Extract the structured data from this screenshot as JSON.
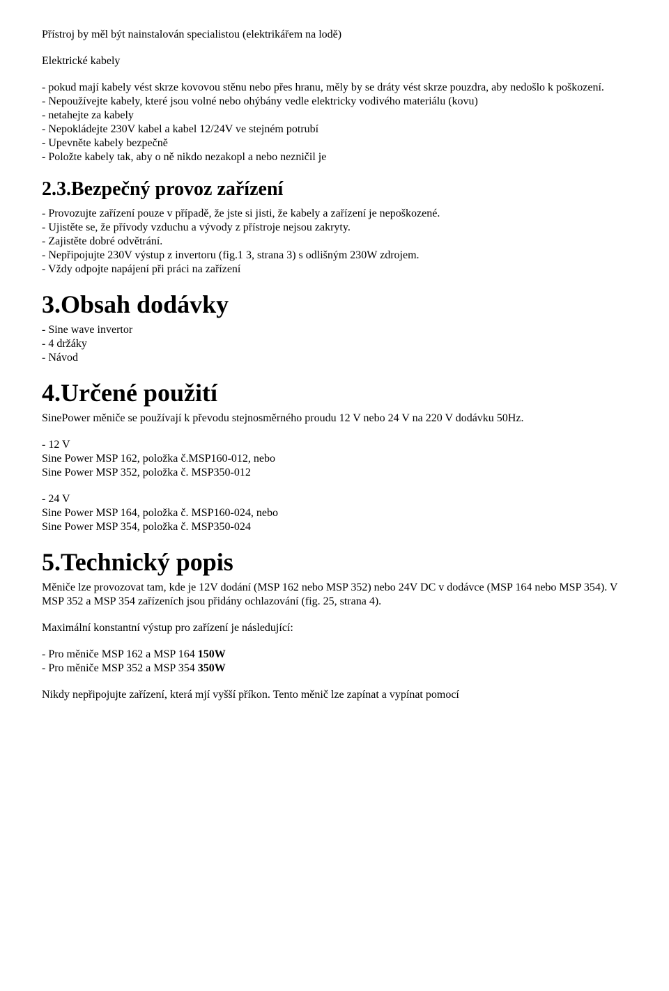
{
  "intro": {
    "line1": "Přístroj by měl být nainstalován specialistou (elektrikářem na lodě)",
    "heading": "Elektrické kabely",
    "bullets": [
      "pokud mají kabely vést skrze kovovou stěnu nebo přes hranu, měly by se dráty vést skrze pouzdra, aby nedošlo k poškození.",
      "Nepoužívejte kabely, které jsou volné nebo ohýbány vedle elektricky vodivého materiálu (kovu)",
      "netahejte za kabely",
      "Nepokládejte 230V kabel a kabel 12/24V ve stejném potrubí",
      "Upevněte kabely bezpečně",
      "Položte kabely tak, aby o ně nikdo nezakopl a nebo nezničil je"
    ]
  },
  "s23": {
    "title": "2.3.Bezpečný provoz zařízení",
    "bullets": [
      "Provozujte zařízení pouze v případě, že jste si jisti, že kabely a zařízení je nepoškozené.",
      "Ujistěte se, že přívody vzduchu a vývody z přístroje nejsou zakryty.",
      "Zajistěte dobré odvětrání.",
      "Nepřipojujte 230V výstup z invertoru (fig.1 3, strana 3) s odlišným 230W zdrojem.",
      "Vždy odpojte napájení při práci na zařízení"
    ]
  },
  "s3": {
    "title": "3.Obsah dodávky",
    "bullets": [
      "Sine wave invertor",
      "4 držáky",
      "Návod"
    ]
  },
  "s4": {
    "title": "4.Určené použití",
    "desc": "SinePower měniče se používají k převodu stejnosměrného proudu 12 V nebo 24 V na 220 V dodávku 50Hz.",
    "v12_label": "- 12 V",
    "v12_lines": [
      "Sine Power MSP 162, položka č.MSP160-012, nebo",
      "Sine Power MSP 352, položka č. MSP350-012"
    ],
    "v24_label": "- 24 V",
    "v24_lines": [
      "Sine Power MSP 164, položka č. MSP160-024, nebo",
      "Sine Power MSP 354, položka č. MSP350-024"
    ]
  },
  "s5": {
    "title": "5.Technický popis",
    "para1": "Měniče lze provozovat tam, kde je 12V dodání (MSP 162 nebo MSP 352) nebo 24V DC v dodávce (MSP 164 nebo MSP 354).  V MSP 352 a MSP 354 zařízeních jsou přidány ochlazování (fig. 25, strana 4).",
    "para2": "Maximální konstantní výstup pro zařízení je následující:",
    "bullets_prefix": [
      "Pro měniče MSP 162 a MSP 164 ",
      "Pro měniče MSP 352 a MSP 354 "
    ],
    "bullets_bold": [
      "150W",
      "350W"
    ],
    "para3": "Nikdy nepřipojujte zařízení, která mjí vyšší příkon. Tento měnič lze zapínat a vypínat pomocí"
  }
}
